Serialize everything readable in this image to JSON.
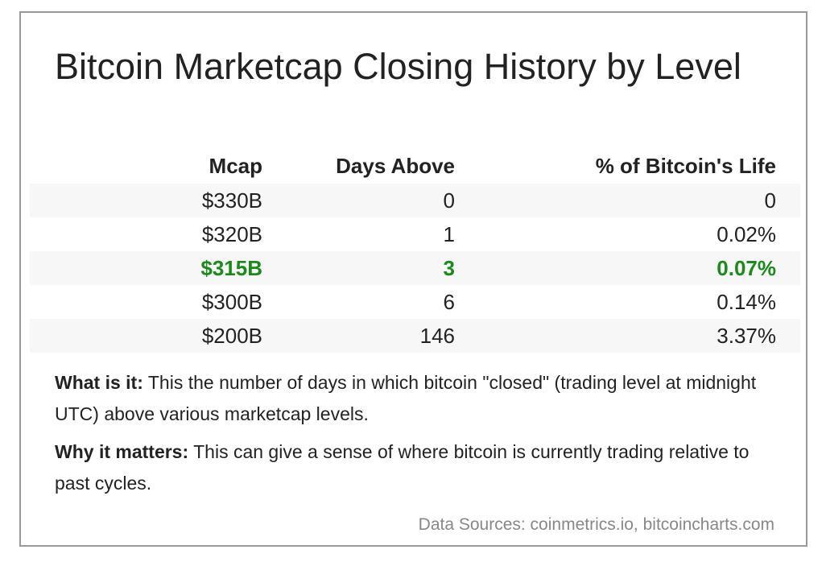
{
  "title": "Bitcoin Marketcap Closing History by Level",
  "table": {
    "headers": [
      "Mcap",
      "Days Above",
      "% of Bitcoin's Life"
    ],
    "rows": [
      [
        "$330B",
        "0",
        "0"
      ],
      [
        "$320B",
        "1",
        "0.02%"
      ],
      [
        "$315B",
        "3",
        "0.07%"
      ],
      [
        "$300B",
        "6",
        "0.14%"
      ],
      [
        "$200B",
        "146",
        "3.37%"
      ]
    ],
    "highlight_row": 2,
    "highlight_color": "#1b8a1b",
    "stripe_color": "#f7f7f7"
  },
  "what_is_it": {
    "label": "What is it:",
    "text": " This the number of days in which bitcoin \"closed\" (trading level at midnight UTC) above various marketcap levels."
  },
  "why_it_matters": {
    "label": "Why it matters:",
    "text": " This can give a sense of where bitcoin is currently trading relative to past cycles."
  },
  "sources": "Data Sources: coinmetrics.io, bitcoincharts.com"
}
